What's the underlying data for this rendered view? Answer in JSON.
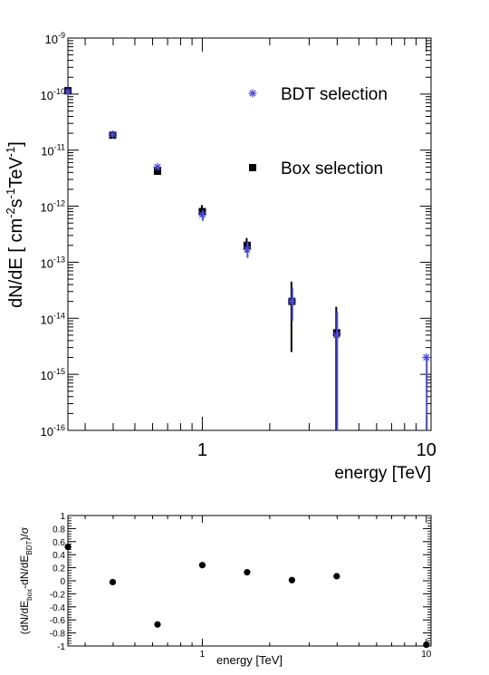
{
  "chart_data": [
    {
      "type": "scatter",
      "xscale": "log",
      "yscale": "log",
      "xlim": [
        0.2512,
        10.5
      ],
      "ylim": [
        1e-16,
        1e-09
      ],
      "xlabel": "energy [TeV]",
      "ylabel_main": "dN/dE [ cm",
      "ylabel_sup1": "-2",
      "ylabel_mid1": "s",
      "ylabel_sup2": "-1",
      "ylabel_mid2": "TeV",
      "ylabel_sup3": "-1",
      "ylabel_end": "]",
      "x_tick_labels": [
        {
          "value": 1,
          "text": "1"
        },
        {
          "value": 10,
          "text": "10"
        }
      ],
      "y_tick_labels": [
        {
          "value": 1e-09,
          "base": "10",
          "exp": "-9"
        },
        {
          "value": 1e-10,
          "base": "10",
          "exp": "-10"
        },
        {
          "value": 1e-11,
          "base": "10",
          "exp": "-11"
        },
        {
          "value": 1e-12,
          "base": "10",
          "exp": "-12"
        },
        {
          "value": 1e-13,
          "base": "10",
          "exp": "-13"
        },
        {
          "value": 1e-14,
          "base": "10",
          "exp": "-14"
        },
        {
          "value": 1e-15,
          "base": "10",
          "exp": "-15"
        },
        {
          "value": 1e-16,
          "base": "10",
          "exp": "-16"
        }
      ],
      "legend": [
        {
          "label": "BDT selection",
          "marker": "star",
          "color": "#4b4bd8"
        },
        {
          "label": "Box selection",
          "marker": "square",
          "color": "#000000"
        }
      ],
      "series": [
        {
          "name": "BDT selection",
          "marker": "star",
          "color": "#4b4bd8",
          "points": [
            {
              "x": 0.2512,
              "y": 1.1e-10,
              "ylo": 1.05e-10,
              "yhi": 1.15e-10
            },
            {
              "x": 0.3981,
              "y": 1.9e-11,
              "ylo": 1.8e-11,
              "yhi": 2e-11
            },
            {
              "x": 0.631,
              "y": 5e-12,
              "ylo": 4.6e-12,
              "yhi": 5.4e-12
            },
            {
              "x": 1.0,
              "y": 7e-13,
              "ylo": 5.5e-13,
              "yhi": 8.5e-13
            },
            {
              "x": 1.585,
              "y": 1.7e-13,
              "ylo": 1.2e-13,
              "yhi": 2.3e-13
            },
            {
              "x": 2.512,
              "y": 2e-14,
              "ylo": 9e-15,
              "yhi": 3.5e-14
            },
            {
              "x": 3.981,
              "y": 5e-15,
              "ylo": 1e-16,
              "yhi": 1.3e-14
            },
            {
              "x": 10.0,
              "y": 2e-15,
              "ylo": 1e-16,
              "yhi": 2e-15
            }
          ]
        },
        {
          "name": "Box selection",
          "marker": "square",
          "color": "#000000",
          "points": [
            {
              "x": 0.2512,
              "y": 1.15e-10,
              "ylo": 1.1e-10,
              "yhi": 1.2e-10
            },
            {
              "x": 0.3981,
              "y": 1.85e-11,
              "ylo": 1.75e-11,
              "yhi": 1.95e-11
            },
            {
              "x": 0.631,
              "y": 4.2e-12,
              "ylo": 3.7e-12,
              "yhi": 4.7e-12
            },
            {
              "x": 1.0,
              "y": 8e-13,
              "ylo": 6.5e-13,
              "yhi": 1.05e-12
            },
            {
              "x": 1.585,
              "y": 2e-13,
              "ylo": 1.5e-13,
              "yhi": 2.7e-13
            },
            {
              "x": 2.512,
              "y": 2e-14,
              "ylo": 2.5e-15,
              "yhi": 4.5e-14
            },
            {
              "x": 3.981,
              "y": 5.5e-15,
              "ylo": 1e-16,
              "yhi": 1.6e-14
            }
          ]
        }
      ]
    },
    {
      "type": "scatter",
      "xscale": "log",
      "xlim": [
        0.2512,
        10.5
      ],
      "ylim": [
        -1,
        1
      ],
      "xlabel": "energy [TeV]",
      "ylabel_p1": "(dN/dE",
      "ylabel_sub1": "box",
      "ylabel_p2": "-dN/dE",
      "ylabel_sub2": "BDT",
      "ylabel_p3": ")/σ",
      "x_tick_labels": [
        {
          "value": 1,
          "text": "1"
        },
        {
          "value": 10,
          "text": "10"
        }
      ],
      "y_tick_labels": [
        "1",
        "0.8",
        "0.6",
        "0.4",
        "0.2",
        "0",
        "-0.2",
        "-0.4",
        "-0.6",
        "-0.8",
        "-1"
      ],
      "y_tick_values": [
        1,
        0.8,
        0.6,
        0.4,
        0.2,
        0,
        -0.2,
        -0.4,
        -0.6,
        -0.8,
        -1
      ],
      "series": [
        {
          "marker": "circle",
          "color": "#000000",
          "points": [
            {
              "x": 0.2512,
              "y": 0.52
            },
            {
              "x": 0.3981,
              "y": -0.02
            },
            {
              "x": 0.631,
              "y": -0.67
            },
            {
              "x": 1.0,
              "y": 0.24
            },
            {
              "x": 1.585,
              "y": 0.13
            },
            {
              "x": 2.512,
              "y": 0.01
            },
            {
              "x": 3.981,
              "y": 0.07
            },
            {
              "x": 10.0,
              "y": -0.98
            }
          ]
        }
      ]
    }
  ]
}
